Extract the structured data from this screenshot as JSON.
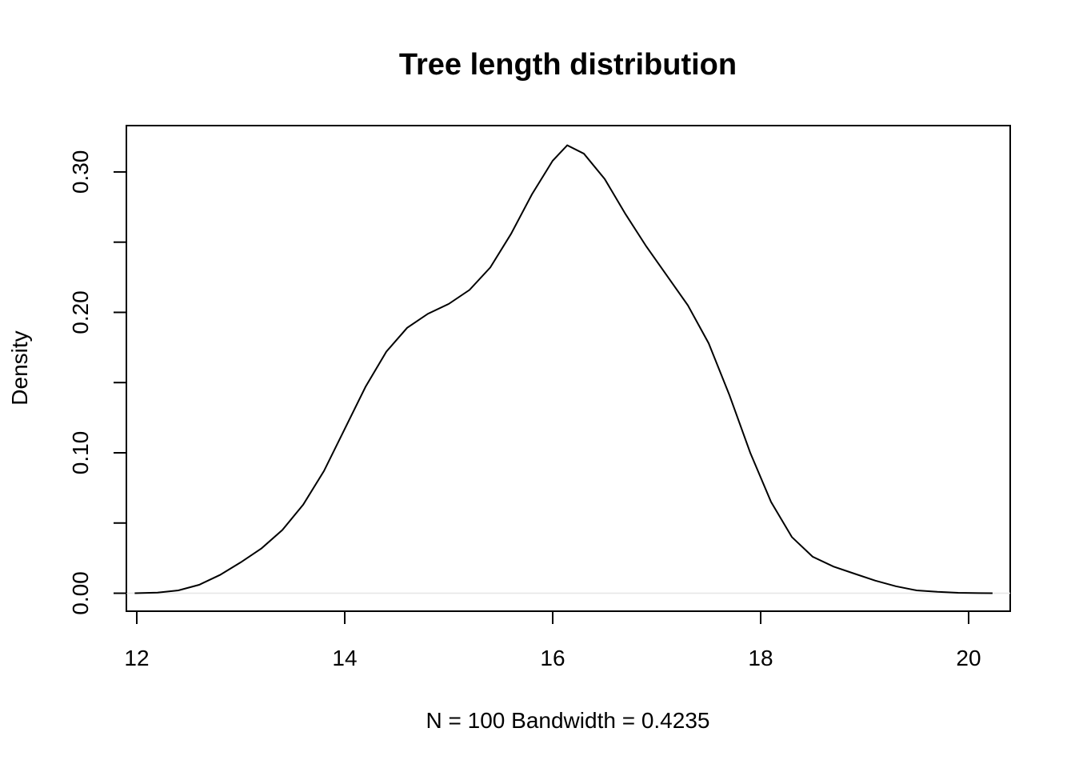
{
  "chart_data": {
    "type": "line",
    "title": "Tree length distribution",
    "xlabel": "N = 100   Bandwidth = 0.4235",
    "ylabel": "Density",
    "xlim": [
      11.9,
      20.4
    ],
    "ylim": [
      -0.0128,
      0.333
    ],
    "x_ticks": [
      12,
      14,
      16,
      18,
      20
    ],
    "x_tick_labels": [
      "12",
      "14",
      "16",
      "18",
      "20"
    ],
    "y_ticks": [
      0.0,
      0.05,
      0.1,
      0.15,
      0.2,
      0.25,
      0.3
    ],
    "y_tick_labels": [
      "0.00",
      "",
      "0.10",
      "",
      "0.20",
      "",
      "0.30"
    ],
    "grid": false,
    "legend": "none",
    "zero_line": true,
    "series": [
      {
        "x": [
          11.98,
          12.2,
          12.4,
          12.6,
          12.8,
          13.0,
          13.2,
          13.4,
          13.6,
          13.8,
          14.0,
          14.2,
          14.4,
          14.6,
          14.8,
          15.0,
          15.2,
          15.4,
          15.6,
          15.8,
          16.0,
          16.14,
          16.3,
          16.5,
          16.7,
          16.9,
          17.1,
          17.3,
          17.5,
          17.7,
          17.9,
          18.1,
          18.3,
          18.5,
          18.7,
          18.9,
          19.1,
          19.3,
          19.5,
          19.7,
          19.9,
          20.1,
          20.23
        ],
        "y": [
          0.0,
          0.0005,
          0.002,
          0.006,
          0.013,
          0.022,
          0.032,
          0.045,
          0.063,
          0.087,
          0.117,
          0.147,
          0.172,
          0.189,
          0.199,
          0.206,
          0.216,
          0.232,
          0.256,
          0.284,
          0.308,
          0.319,
          0.313,
          0.295,
          0.27,
          0.247,
          0.226,
          0.205,
          0.178,
          0.141,
          0.1,
          0.065,
          0.04,
          0.026,
          0.019,
          0.014,
          0.009,
          0.005,
          0.002,
          0.001,
          0.0003,
          0.0001,
          0.0
        ]
      }
    ]
  }
}
